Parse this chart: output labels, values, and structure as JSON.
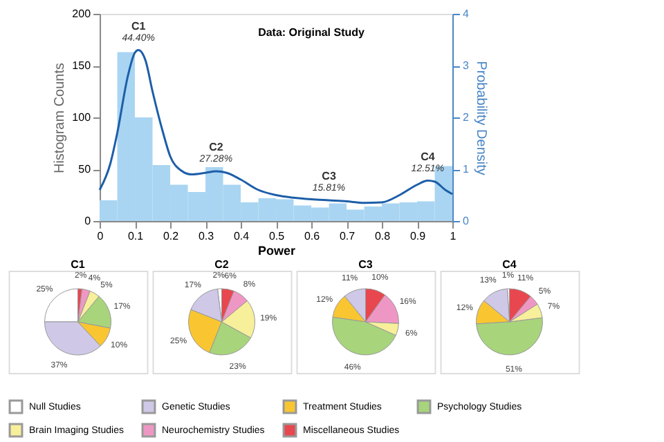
{
  "chart_data": [
    {
      "type": "histogram",
      "title": "Data: Original Study",
      "xlabel": "Power",
      "ylabel": "Histogram Counts",
      "y2label": "Probability Density",
      "bins": [
        0,
        0.05,
        0.1,
        0.15,
        0.2,
        0.25,
        0.3,
        0.35,
        0.4,
        0.45,
        0.5,
        0.55,
        0.6,
        0.65,
        0.7,
        0.75,
        0.8,
        0.85,
        0.9,
        0.95,
        1
      ],
      "values": [
        20,
        163,
        100,
        54,
        35,
        28,
        52,
        35,
        18,
        22,
        21,
        15,
        13,
        17,
        11,
        14,
        17,
        18,
        19,
        53
      ],
      "color": "#a9d5f2",
      "series": [
        {
          "type": "line",
          "axis": "y2",
          "color": "#1d5ea8",
          "x": [
            0,
            0.03,
            0.05,
            0.08,
            0.1,
            0.11,
            0.13,
            0.15,
            0.18,
            0.2,
            0.23,
            0.26,
            0.3,
            0.33,
            0.36,
            0.4,
            0.45,
            0.5,
            0.55,
            0.6,
            0.65,
            0.7,
            0.75,
            0.8,
            0.85,
            0.9,
            0.93,
            0.95,
            0.98,
            1
          ],
          "values": [
            0.6,
            1.1,
            1.7,
            2.8,
            3.25,
            3.3,
            3.1,
            2.5,
            1.7,
            1.25,
            0.98,
            0.9,
            0.93,
            0.96,
            0.93,
            0.8,
            0.6,
            0.5,
            0.45,
            0.42,
            0.4,
            0.38,
            0.35,
            0.36,
            0.5,
            0.7,
            0.78,
            0.76,
            0.6,
            0.52
          ]
        }
      ],
      "xlim": [
        0,
        1
      ],
      "xticks": [
        {
          "value": 0,
          "label": "0"
        },
        0.1,
        0.2,
        0.3,
        0.4,
        0.5,
        0.6,
        0.7,
        0.8,
        0.9,
        {
          "value": 1,
          "label": "1"
        }
      ],
      "ylim": [
        0,
        200
      ],
      "yticks": [
        0,
        50,
        100,
        150,
        200
      ],
      "y2lim": [
        0,
        4
      ],
      "y2ticks": [
        0,
        1,
        2,
        3,
        4
      ],
      "annotations": [
        {
          "text": "C1",
          "x": 0.11,
          "y": 165
        },
        {
          "text": "44.40%",
          "x": 0.11,
          "y": 165
        },
        {
          "text": "C2",
          "x": 0.33,
          "y": 48
        },
        {
          "text": "27.28%",
          "x": 0.33,
          "y": 48
        },
        {
          "text": "C3",
          "x": 0.65,
          "y": 20
        },
        {
          "text": "15.81%",
          "x": 0.65,
          "y": 20
        },
        {
          "text": "C4",
          "x": 0.93,
          "y": 39
        },
        {
          "text": "12.51%",
          "x": 0.93,
          "y": 39
        }
      ]
    },
    {
      "type": "pie",
      "title": "C1",
      "legend": "bottom",
      "categories": [
        "Null Studies",
        "Genetic Studies",
        "Treatment Studies",
        "Psychology Studies",
        "Brain Imaging Studies",
        "Neurochemistry Studies",
        "Miscellaneous Studies"
      ],
      "values": [
        25,
        37,
        10,
        17,
        5,
        4,
        2
      ],
      "value_labels": [
        "25%",
        "37%",
        "10%",
        "17%",
        "5%",
        "4%",
        "2%"
      ],
      "colors": [
        "#ffffff",
        "#cfc8e6",
        "#f9c631",
        "#a8d47c",
        "#f7ef9a",
        "#ef97c4",
        "#e8474f"
      ]
    },
    {
      "type": "pie",
      "title": "C2",
      "values": [
        2,
        17,
        25,
        23,
        19,
        8,
        6
      ],
      "value_labels": [
        "2%",
        "17%",
        "25%",
        "23%",
        "19%",
        "8%",
        "6%"
      ],
      "colors": [
        "#ffffff",
        "#cfc8e6",
        "#f9c631",
        "#a8d47c",
        "#f7ef9a",
        "#ef97c4",
        "#e8474f"
      ]
    },
    {
      "type": "pie",
      "title": "C3",
      "values": [
        0,
        11,
        12,
        46,
        6,
        16,
        10
      ],
      "value_labels": [
        null,
        "11%",
        "12%",
        "46%",
        "6%",
        "16%",
        "10%"
      ],
      "colors": [
        "#ffffff",
        "#cfc8e6",
        "#f9c631",
        "#a8d47c",
        "#f7ef9a",
        "#ef97c4",
        "#e8474f"
      ]
    },
    {
      "type": "pie",
      "title": "C4",
      "values": [
        1,
        13,
        12,
        51,
        7,
        5,
        11
      ],
      "value_labels": [
        "1%",
        "13%",
        "12%",
        "51%",
        "7%",
        "5%",
        "11%"
      ],
      "colors": [
        "#ffffff",
        "#cfc8e6",
        "#f9c631",
        "#a8d47c",
        "#f7ef9a",
        "#ef97c4",
        "#e8474f"
      ]
    }
  ]
}
